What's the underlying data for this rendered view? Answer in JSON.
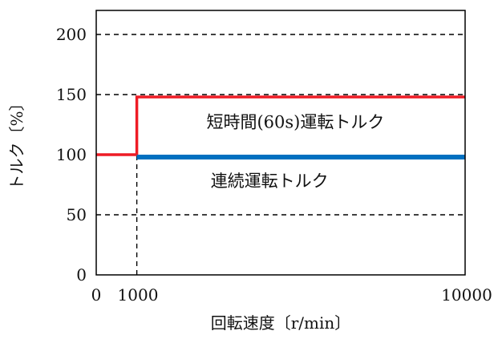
{
  "chart_data": {
    "type": "line",
    "xlabel": "回転速度〔r/min〕",
    "ylabel": "トルク〔%〕",
    "ylim": [
      0,
      220
    ],
    "xlim": [
      0,
      10000
    ],
    "yticks": [
      0,
      50,
      100,
      150,
      200
    ],
    "xticks": [
      0,
      1000,
      10000
    ],
    "xtick_labels": [
      "0",
      "1000",
      "10000"
    ],
    "ytick_labels": [
      "0",
      "50",
      "100",
      "150",
      "200"
    ],
    "grid": "horizontal dashed at 50, 150, 200",
    "vertical_reference": {
      "x": 1100,
      "style": "dashed"
    },
    "series": [
      {
        "color": "#ee1c25",
        "x": [
          0,
          1100,
          1100,
          10000
        ],
        "y": [
          100,
          100,
          148,
          148
        ]
      },
      {
        "color": "#0070c0",
        "x": [
          1100,
          10000
        ],
        "y": [
          98,
          98
        ]
      }
    ],
    "annotations": [
      {
        "text": "短時間(60s)運転トルク",
        "x": 5400,
        "y": 127
      },
      {
        "text": "連続運転トルク",
        "x": 4700,
        "y": 78
      }
    ]
  }
}
